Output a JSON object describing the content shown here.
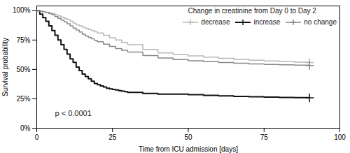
{
  "chart_data": {
    "type": "step",
    "title": "Change in creatinine from Day 0 to Day 2",
    "xlabel": "Time from ICU admission [days]",
    "ylabel": "Survival probability",
    "xlim": [
      0,
      100
    ],
    "ylim": [
      0,
      1.04
    ],
    "xticks": [
      0,
      25,
      50,
      75,
      100
    ],
    "yticks": [
      {
        "value": 0,
        "label": "0%"
      },
      {
        "value": 0.25,
        "label": "25%"
      },
      {
        "value": 0.5,
        "label": "50%"
      },
      {
        "value": 0.75,
        "label": "75%"
      },
      {
        "value": 1.0,
        "label": "100%"
      }
    ],
    "annotations": [
      "p < 0.0001"
    ],
    "legend": "upper right",
    "series": [
      {
        "name": "decrease",
        "color": "#b8b8b8",
        "marker": "plus",
        "x": [
          0,
          1,
          2,
          3,
          4,
          5,
          6,
          7,
          8,
          9,
          10,
          11,
          12,
          13,
          14,
          15,
          16,
          17,
          18,
          19,
          20,
          22,
          24,
          26,
          28,
          30,
          35,
          40,
          45,
          50,
          55,
          60,
          65,
          70,
          75,
          80,
          85,
          90
        ],
        "values": [
          1.0,
          0.995,
          0.99,
          0.985,
          0.98,
          0.975,
          0.965,
          0.955,
          0.945,
          0.935,
          0.925,
          0.91,
          0.895,
          0.88,
          0.87,
          0.86,
          0.85,
          0.84,
          0.83,
          0.82,
          0.81,
          0.79,
          0.77,
          0.75,
          0.73,
          0.71,
          0.67,
          0.64,
          0.625,
          0.615,
          0.605,
          0.595,
          0.585,
          0.578,
          0.572,
          0.568,
          0.562,
          0.558
        ]
      },
      {
        "name": "increase",
        "color": "#111111",
        "marker": "plus",
        "x": [
          0,
          1,
          2,
          3,
          4,
          5,
          6,
          7,
          8,
          9,
          10,
          11,
          12,
          13,
          14,
          15,
          16,
          17,
          18,
          19,
          20,
          21,
          22,
          23,
          24,
          25,
          26,
          27,
          28,
          29,
          30,
          35,
          40,
          50,
          55,
          60,
          65,
          70,
          75,
          80,
          85,
          90
        ],
        "values": [
          1.0,
          0.97,
          0.94,
          0.91,
          0.87,
          0.83,
          0.79,
          0.75,
          0.71,
          0.67,
          0.63,
          0.59,
          0.56,
          0.52,
          0.49,
          0.46,
          0.44,
          0.42,
          0.4,
          0.38,
          0.37,
          0.36,
          0.35,
          0.34,
          0.335,
          0.33,
          0.325,
          0.32,
          0.315,
          0.31,
          0.305,
          0.295,
          0.29,
          0.285,
          0.28,
          0.275,
          0.27,
          0.268,
          0.265,
          0.262,
          0.26,
          0.258
        ]
      },
      {
        "name": "no change",
        "color": "#888888",
        "marker": "plus",
        "x": [
          0,
          1,
          2,
          3,
          4,
          5,
          6,
          7,
          8,
          9,
          10,
          11,
          12,
          13,
          14,
          15,
          16,
          17,
          18,
          19,
          20,
          22,
          24,
          26,
          28,
          30,
          35,
          40,
          45,
          50,
          55,
          60,
          65,
          70,
          75,
          80,
          85,
          90
        ],
        "values": [
          1.0,
          0.995,
          0.99,
          0.985,
          0.975,
          0.965,
          0.95,
          0.935,
          0.92,
          0.905,
          0.888,
          0.87,
          0.852,
          0.835,
          0.818,
          0.8,
          0.785,
          0.772,
          0.76,
          0.748,
          0.736,
          0.715,
          0.696,
          0.678,
          0.662,
          0.648,
          0.618,
          0.598,
          0.584,
          0.574,
          0.566,
          0.558,
          0.552,
          0.547,
          0.543,
          0.54,
          0.537,
          0.534
        ]
      }
    ]
  }
}
